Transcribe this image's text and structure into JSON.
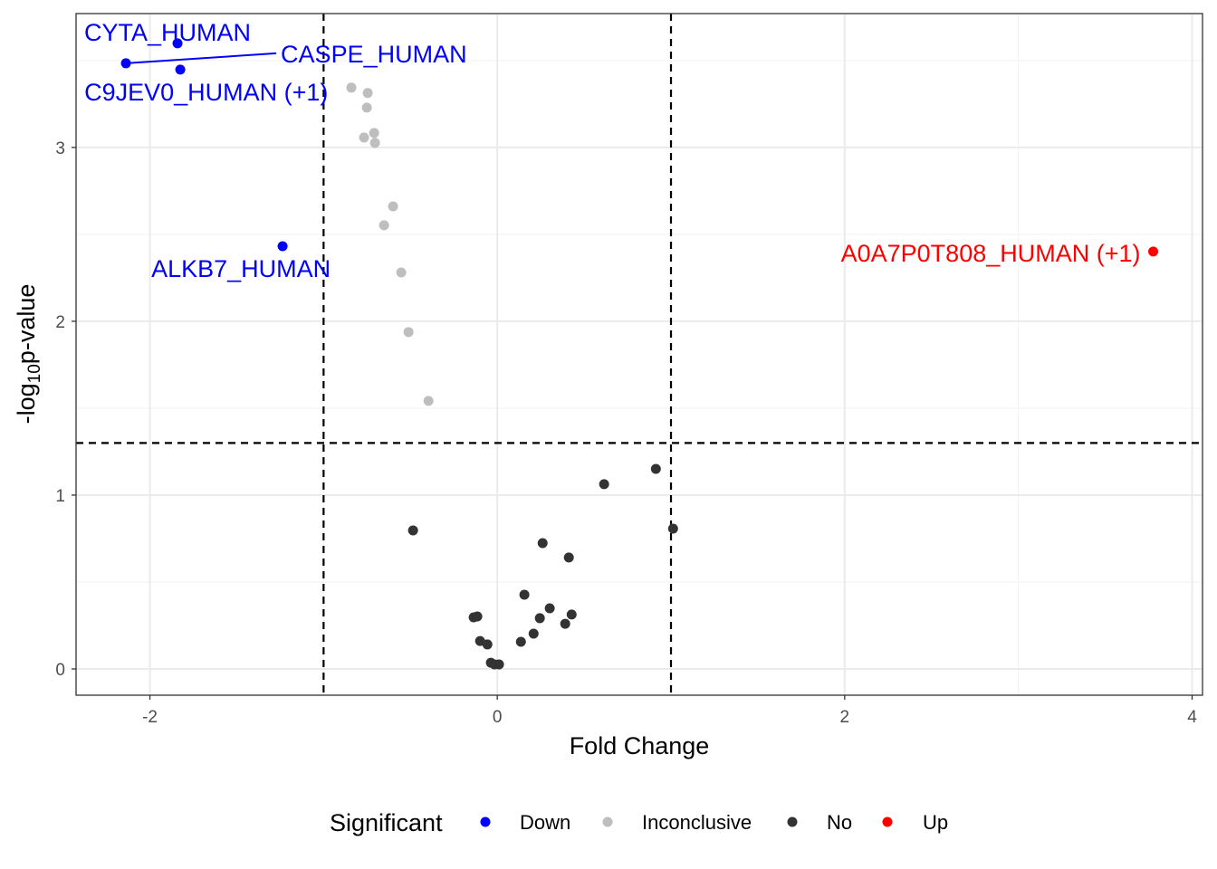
{
  "chart_data": {
    "type": "scatter",
    "title": "",
    "xlabel": "Fold Change",
    "ylabel_prefix": "-log",
    "ylabel_sub": "10",
    "ylabel_suffix": "p-value",
    "xlim": [
      -2.425,
      4.06
    ],
    "ylim": [
      -0.151,
      3.77
    ],
    "xticks": [
      -2,
      0,
      2,
      4
    ],
    "xtick_labels": [
      "-2",
      "0",
      "2",
      "4"
    ],
    "yticks": [
      0,
      1,
      2,
      3
    ],
    "ytick_labels": [
      "0",
      "1",
      "2",
      "3"
    ],
    "grid": true,
    "thresholds": {
      "fold_change": [
        -1,
        1
      ],
      "neg_log10_p": 1.3
    },
    "legend": {
      "title": "Significant",
      "position": "bottom",
      "entries": [
        {
          "label": "Down",
          "color": "#0000FF"
        },
        {
          "label": "Inconclusive",
          "color": "#BEBEBE"
        },
        {
          "label": "No",
          "color": "#333333"
        },
        {
          "label": "Up",
          "color": "#FF0000"
        }
      ]
    },
    "series": [
      {
        "name": "Down",
        "color": "#0000FF",
        "points": [
          {
            "x": -2.138,
            "y": 3.484,
            "label": "CASPE_HUMAN"
          },
          {
            "x": -1.841,
            "y": 3.599,
            "label": "CYTA_HUMAN"
          },
          {
            "x": -1.825,
            "y": 3.448,
            "label": "C9JEV0_HUMAN (+1)"
          },
          {
            "x": -1.236,
            "y": 2.432,
            "label": "ALKB7_HUMAN"
          }
        ]
      },
      {
        "name": "Inconclusive",
        "color": "#BEBEBE",
        "points": [
          {
            "x": -0.84,
            "y": 3.344
          },
          {
            "x": -0.746,
            "y": 3.313
          },
          {
            "x": -0.751,
            "y": 3.229
          },
          {
            "x": -0.709,
            "y": 3.083
          },
          {
            "x": -0.767,
            "y": 3.057
          },
          {
            "x": -0.704,
            "y": 3.026
          },
          {
            "x": -0.6,
            "y": 2.661
          },
          {
            "x": -0.652,
            "y": 2.552
          },
          {
            "x": -0.553,
            "y": 2.281
          },
          {
            "x": -0.511,
            "y": 1.938
          },
          {
            "x": -0.396,
            "y": 1.542
          }
        ]
      },
      {
        "name": "No",
        "color": "#333333",
        "points": [
          {
            "x": 0.615,
            "y": 1.063
          },
          {
            "x": 0.913,
            "y": 1.151
          },
          {
            "x": 1.012,
            "y": 0.807
          },
          {
            "x": -0.485,
            "y": 0.797
          },
          {
            "x": 0.261,
            "y": 0.724
          },
          {
            "x": 0.412,
            "y": 0.641
          },
          {
            "x": 0.156,
            "y": 0.427
          },
          {
            "x": 0.302,
            "y": 0.349
          },
          {
            "x": 0.245,
            "y": 0.292
          },
          {
            "x": 0.428,
            "y": 0.313
          },
          {
            "x": 0.391,
            "y": 0.26
          },
          {
            "x": 0.209,
            "y": 0.203
          },
          {
            "x": 0.136,
            "y": 0.156
          },
          {
            "x": -0.136,
            "y": 0.297
          },
          {
            "x": -0.115,
            "y": 0.302
          },
          {
            "x": -0.099,
            "y": 0.161
          },
          {
            "x": -0.057,
            "y": 0.141
          },
          {
            "x": -0.037,
            "y": 0.036
          },
          {
            "x": -0.016,
            "y": 0.026
          },
          {
            "x": 0.01,
            "y": 0.026
          }
        ]
      },
      {
        "name": "Up",
        "color": "#FF0000",
        "points": [
          {
            "x": 3.776,
            "y": 2.401,
            "label": "A0A7P0T808_HUMAN (+1)"
          }
        ]
      }
    ]
  }
}
